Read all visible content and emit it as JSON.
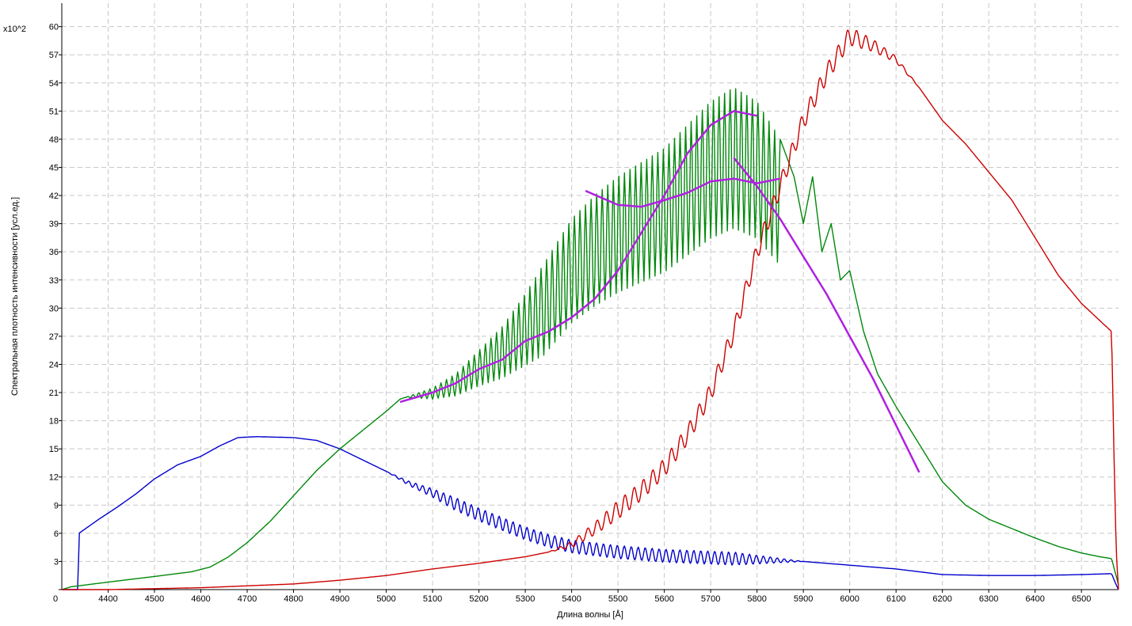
{
  "chart_data": {
    "type": "line",
    "xlabel": "Длина волны  [Å]",
    "ylabel": "Спектральная плотность интенсивности [усл.ед.]",
    "y_multiplier_label": "x10^2",
    "xlim": [
      4300,
      6580
    ],
    "ylim": [
      0,
      62.5
    ],
    "x_ticks": [
      4400,
      4500,
      4600,
      4700,
      4800,
      4900,
      5000,
      5100,
      5200,
      5300,
      5400,
      5500,
      5600,
      5700,
      5800,
      5900,
      6000,
      6100,
      6200,
      6300,
      6400,
      6500
    ],
    "y_ticks": [
      0,
      3,
      6,
      9,
      12,
      15,
      18,
      21,
      24,
      27,
      30,
      33,
      36,
      39,
      42,
      45,
      48,
      51,
      54,
      57,
      60
    ],
    "origin_label": "0",
    "grid": true,
    "legend": "none",
    "series": [
      {
        "color": "#0000cc",
        "ripple": {
          "from": 5000,
          "to": 5900,
          "amplitude": 0.7,
          "period": 15
        },
        "points": [
          [
            4300,
            0
          ],
          [
            4335,
            0
          ],
          [
            4337,
            6
          ],
          [
            4380,
            7.5
          ],
          [
            4420,
            8.8
          ],
          [
            4460,
            10.2
          ],
          [
            4500,
            11.8
          ],
          [
            4550,
            13.3
          ],
          [
            4600,
            14.2
          ],
          [
            4640,
            15.3
          ],
          [
            4680,
            16.2
          ],
          [
            4720,
            16.3
          ],
          [
            4800,
            16.2
          ],
          [
            4850,
            15.9
          ],
          [
            4900,
            15.0
          ],
          [
            4950,
            13.8
          ],
          [
            5000,
            12.6
          ],
          [
            5050,
            11.3
          ],
          [
            5100,
            10.3
          ],
          [
            5150,
            9.1
          ],
          [
            5200,
            8.0
          ],
          [
            5250,
            7.0
          ],
          [
            5300,
            6.0
          ],
          [
            5350,
            5.2
          ],
          [
            5400,
            4.6
          ],
          [
            5450,
            4.3
          ],
          [
            5500,
            4.0
          ],
          [
            5550,
            3.8
          ],
          [
            5600,
            3.6
          ],
          [
            5650,
            3.5
          ],
          [
            5700,
            3.4
          ],
          [
            5750,
            3.3
          ],
          [
            5800,
            3.2
          ],
          [
            5850,
            3.1
          ],
          [
            5900,
            3.0
          ],
          [
            5950,
            2.8
          ],
          [
            6000,
            2.6
          ],
          [
            6050,
            2.4
          ],
          [
            6100,
            2.2
          ],
          [
            6150,
            1.9
          ],
          [
            6200,
            1.6
          ],
          [
            6300,
            1.5
          ],
          [
            6400,
            1.5
          ],
          [
            6500,
            1.6
          ],
          [
            6565,
            1.7
          ],
          [
            6575,
            0.5
          ],
          [
            6580,
            0
          ]
        ]
      },
      {
        "color": "#00880a",
        "ripple": {
          "from": 5040,
          "to": 5850,
          "amplitude": 0,
          "period": 12
        },
        "points": [
          [
            4300,
            0
          ],
          [
            4320,
            0.3
          ],
          [
            4400,
            0.8
          ],
          [
            4500,
            1.4
          ],
          [
            4580,
            1.9
          ],
          [
            4620,
            2.4
          ],
          [
            4660,
            3.5
          ],
          [
            4700,
            5.0
          ],
          [
            4750,
            7.3
          ],
          [
            4800,
            10.0
          ],
          [
            4850,
            12.7
          ],
          [
            4900,
            15.0
          ],
          [
            4950,
            17.0
          ],
          [
            5000,
            19.0
          ],
          [
            5030,
            20.3
          ],
          [
            5100,
            21.5
          ],
          [
            5150,
            23.0
          ],
          [
            5200,
            25.5
          ],
          [
            5250,
            28.0
          ],
          [
            5300,
            31.5
          ],
          [
            5350,
            35.5
          ],
          [
            5400,
            39.5
          ],
          [
            5450,
            42.0
          ],
          [
            5500,
            44.0
          ],
          [
            5550,
            45.5
          ],
          [
            5600,
            47.0
          ],
          [
            5650,
            49.5
          ],
          [
            5700,
            52.0
          ],
          [
            5750,
            53.5
          ],
          [
            5800,
            52.0
          ],
          [
            5850,
            48.0
          ],
          [
            5880,
            44.0
          ],
          [
            5900,
            39.0
          ],
          [
            5920,
            44.0
          ],
          [
            5940,
            36.0
          ],
          [
            5960,
            39.0
          ],
          [
            5980,
            33.0
          ],
          [
            6000,
            34.0
          ],
          [
            6030,
            27.5
          ],
          [
            6060,
            23.0
          ],
          [
            6100,
            19.5
          ],
          [
            6150,
            15.5
          ],
          [
            6200,
            11.5
          ],
          [
            6250,
            9.0
          ],
          [
            6300,
            7.5
          ],
          [
            6350,
            6.5
          ],
          [
            6400,
            5.5
          ],
          [
            6450,
            4.6
          ],
          [
            6500,
            3.9
          ],
          [
            6540,
            3.5
          ],
          [
            6565,
            3.3
          ],
          [
            6580,
            0.5
          ]
        ]
      },
      {
        "color": "#cc0000",
        "ripple": {
          "from": 5350,
          "to": 6150,
          "amplitude": 1.0,
          "period": 20
        },
        "points": [
          [
            4300,
            0
          ],
          [
            4400,
            0
          ],
          [
            4500,
            0.1
          ],
          [
            4600,
            0.2
          ],
          [
            4700,
            0.4
          ],
          [
            4800,
            0.6
          ],
          [
            4900,
            1.0
          ],
          [
            5000,
            1.5
          ],
          [
            5100,
            2.2
          ],
          [
            5200,
            2.8
          ],
          [
            5300,
            3.5
          ],
          [
            5350,
            4.0
          ],
          [
            5400,
            4.8
          ],
          [
            5450,
            6.5
          ],
          [
            5500,
            8.5
          ],
          [
            5550,
            10.5
          ],
          [
            5600,
            13.0
          ],
          [
            5650,
            16.5
          ],
          [
            5700,
            21.0
          ],
          [
            5750,
            27.5
          ],
          [
            5800,
            36.0
          ],
          [
            5850,
            43.0
          ],
          [
            5900,
            50.0
          ],
          [
            5950,
            55.0
          ],
          [
            6000,
            59.0
          ],
          [
            6050,
            58.0
          ],
          [
            6100,
            56.5
          ],
          [
            6150,
            53.5
          ],
          [
            6200,
            50.0
          ],
          [
            6250,
            47.5
          ],
          [
            6300,
            44.5
          ],
          [
            6350,
            41.5
          ],
          [
            6400,
            37.5
          ],
          [
            6450,
            33.5
          ],
          [
            6500,
            30.5
          ],
          [
            6565,
            27.5
          ],
          [
            6570,
            15.0
          ],
          [
            6575,
            4.0
          ],
          [
            6580,
            0
          ]
        ]
      },
      {
        "color": "#b020e0",
        "ripple": {
          "from": 0,
          "to": 0,
          "amplitude": 0,
          "period": 1
        },
        "points": [
          [
            5030,
            20.0
          ],
          [
            5100,
            21.0
          ],
          [
            5150,
            22.0
          ],
          [
            5200,
            23.5
          ],
          [
            5250,
            24.5
          ],
          [
            5300,
            26.5
          ],
          [
            5350,
            27.5
          ],
          [
            5400,
            29.0
          ],
          [
            5450,
            31.0
          ],
          [
            5500,
            34.0
          ],
          [
            5550,
            38.0
          ],
          [
            5600,
            42.0
          ],
          [
            5650,
            46.5
          ],
          [
            5700,
            49.5
          ],
          [
            5750,
            51.0
          ],
          [
            5800,
            50.5
          ]
        ]
      },
      {
        "color": "#b020e0",
        "ripple": {
          "from": 0,
          "to": 0,
          "amplitude": 0,
          "period": 1
        },
        "points": [
          [
            5430,
            42.5
          ],
          [
            5500,
            41.0
          ],
          [
            5550,
            40.8
          ],
          [
            5600,
            41.5
          ],
          [
            5650,
            42.3
          ],
          [
            5700,
            43.5
          ],
          [
            5750,
            43.8
          ],
          [
            5800,
            43.3
          ],
          [
            5850,
            43.8
          ]
        ]
      },
      {
        "color": "#b020e0",
        "ripple": {
          "from": 0,
          "to": 0,
          "amplitude": 0,
          "period": 1
        },
        "points": [
          [
            5750,
            46.0
          ],
          [
            5800,
            43.0
          ],
          [
            5850,
            39.5
          ],
          [
            5900,
            35.5
          ],
          [
            5950,
            31.5
          ],
          [
            6000,
            27.0
          ],
          [
            6050,
            22.5
          ],
          [
            6100,
            17.5
          ],
          [
            6150,
            12.5
          ]
        ]
      }
    ]
  }
}
